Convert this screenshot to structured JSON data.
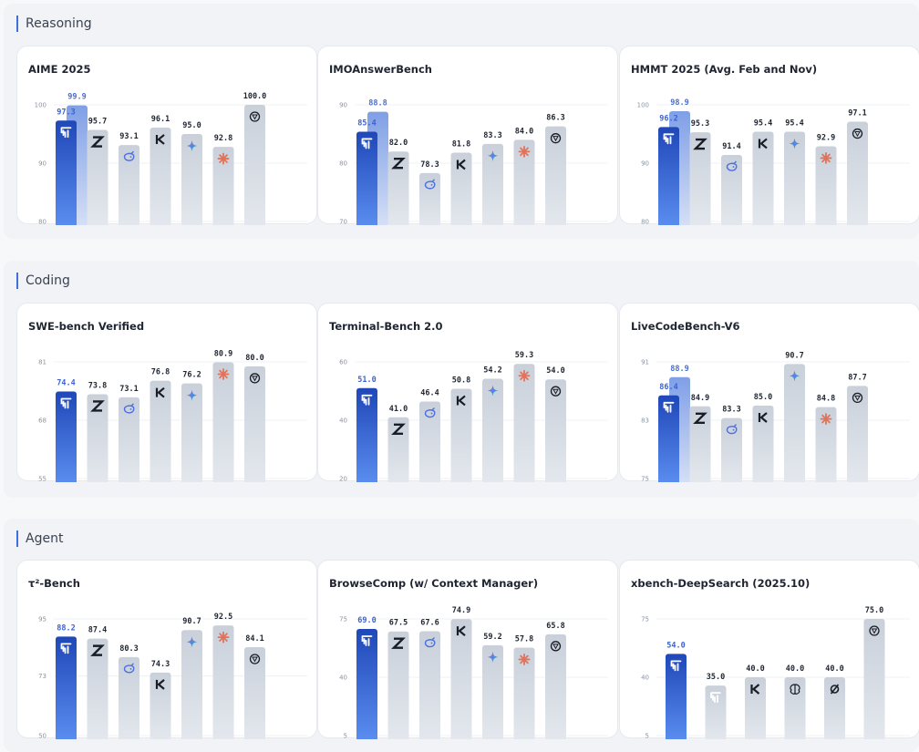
{
  "sections": [
    {
      "title": "Reasoning",
      "panel_ids": [
        0,
        1,
        2
      ]
    },
    {
      "title": "Coding",
      "panel_ids": [
        3,
        4,
        5
      ]
    },
    {
      "title": "Agent",
      "panel_ids": [
        6,
        7,
        8
      ]
    }
  ],
  "chart_data": [
    {
      "type": "bar",
      "title": "AIME 2025",
      "yticks": [
        100,
        90,
        80
      ],
      "ylim": [
        80,
        100
      ],
      "bars": [
        {
          "value": 97.3,
          "label": "97.3",
          "icon": "mimo-icon",
          "highlight": true,
          "secondary": {
            "value": 99.9,
            "label": "99.9"
          }
        },
        {
          "value": 95.7,
          "label": "95.7",
          "icon": "z-icon"
        },
        {
          "value": 93.1,
          "label": "93.1",
          "icon": "whale-icon"
        },
        {
          "value": 96.1,
          "label": "96.1",
          "icon": "k-icon"
        },
        {
          "value": 95.0,
          "label": "95.0",
          "icon": "gemini-icon"
        },
        {
          "value": 92.8,
          "label": "92.8",
          "icon": "claude-icon"
        },
        {
          "value": 100.0,
          "label": "100.0",
          "icon": "openai-icon"
        }
      ]
    },
    {
      "type": "bar",
      "title": "IMOAnswerBench",
      "yticks": [
        90,
        80,
        70
      ],
      "ylim": [
        70,
        90
      ],
      "bars": [
        {
          "value": 85.4,
          "label": "85.4",
          "icon": "mimo-icon",
          "highlight": true,
          "secondary": {
            "value": 88.8,
            "label": "88.8"
          }
        },
        {
          "value": 82.0,
          "label": "82.0",
          "icon": "z-icon"
        },
        {
          "value": 78.3,
          "label": "78.3",
          "icon": "whale-icon"
        },
        {
          "value": 81.8,
          "label": "81.8",
          "icon": "k-icon"
        },
        {
          "value": 83.3,
          "label": "83.3",
          "icon": "gemini-icon"
        },
        {
          "value": 84.0,
          "label": "84.0",
          "icon": "claude-icon"
        },
        {
          "value": 86.3,
          "label": "86.3",
          "icon": "openai-icon"
        }
      ]
    },
    {
      "type": "bar",
      "title": "HMMT 2025 (Avg. Feb and Nov)",
      "yticks": [
        100,
        90,
        80
      ],
      "ylim": [
        80,
        100
      ],
      "bars": [
        {
          "value": 96.2,
          "label": "96.2",
          "icon": "mimo-icon",
          "highlight": true,
          "secondary": {
            "value": 98.9,
            "label": "98.9"
          }
        },
        {
          "value": 95.3,
          "label": "95.3",
          "icon": "z-icon"
        },
        {
          "value": 91.4,
          "label": "91.4",
          "icon": "whale-icon"
        },
        {
          "value": 95.4,
          "label": "95.4",
          "icon": "k-icon"
        },
        {
          "value": 95.4,
          "label": "95.4",
          "icon": "gemini-icon"
        },
        {
          "value": 92.9,
          "label": "92.9",
          "icon": "claude-icon"
        },
        {
          "value": 97.1,
          "label": "97.1",
          "icon": "openai-icon"
        }
      ]
    },
    {
      "type": "bar",
      "title": "SWE-bench Verified",
      "yticks": [
        81,
        68,
        55
      ],
      "ylim": [
        55,
        81
      ],
      "bars": [
        {
          "value": 74.4,
          "label": "74.4",
          "icon": "mimo-icon",
          "highlight": true
        },
        {
          "value": 73.8,
          "label": "73.8",
          "icon": "z-icon"
        },
        {
          "value": 73.1,
          "label": "73.1",
          "icon": "whale-icon"
        },
        {
          "value": 76.8,
          "label": "76.8",
          "icon": "k-icon"
        },
        {
          "value": 76.2,
          "label": "76.2",
          "icon": "gemini-icon"
        },
        {
          "value": 80.9,
          "label": "80.9",
          "icon": "claude-icon"
        },
        {
          "value": 80.0,
          "label": "80.0",
          "icon": "openai-icon"
        }
      ]
    },
    {
      "type": "bar",
      "title": "Terminal-Bench 2.0",
      "yticks": [
        60,
        40,
        20
      ],
      "ylim": [
        20,
        60
      ],
      "bars": [
        {
          "value": 51.0,
          "label": "51.0",
          "icon": "mimo-icon",
          "highlight": true
        },
        {
          "value": 41.0,
          "label": "41.0",
          "icon": "z-icon"
        },
        {
          "value": 46.4,
          "label": "46.4",
          "icon": "whale-icon"
        },
        {
          "value": 50.8,
          "label": "50.8",
          "icon": "k-icon"
        },
        {
          "value": 54.2,
          "label": "54.2",
          "icon": "gemini-icon"
        },
        {
          "value": 59.3,
          "label": "59.3",
          "icon": "claude-icon"
        },
        {
          "value": 54.0,
          "label": "54.0",
          "icon": "openai-icon"
        }
      ]
    },
    {
      "type": "bar",
      "title": "LiveCodeBench-V6",
      "yticks": [
        91,
        83,
        75
      ],
      "ylim": [
        75,
        91
      ],
      "bars": [
        {
          "value": 86.4,
          "label": "86.4",
          "icon": "mimo-icon",
          "highlight": true,
          "secondary": {
            "value": 88.9,
            "label": "88.9"
          }
        },
        {
          "value": 84.9,
          "label": "84.9",
          "icon": "z-icon"
        },
        {
          "value": 83.3,
          "label": "83.3",
          "icon": "whale-icon"
        },
        {
          "value": 85.0,
          "label": "85.0",
          "icon": "k-icon"
        },
        {
          "value": 90.7,
          "label": "90.7",
          "icon": "gemini-icon"
        },
        {
          "value": 84.8,
          "label": "84.8",
          "icon": "claude-icon"
        },
        {
          "value": 87.7,
          "label": "87.7",
          "icon": "openai-icon"
        }
      ]
    },
    {
      "type": "bar",
      "title": "τ²-Bench",
      "yticks": [
        95,
        73,
        50
      ],
      "ylim": [
        50,
        95
      ],
      "bars": [
        {
          "value": 88.2,
          "label": "88.2",
          "icon": "mimo-icon",
          "highlight": true
        },
        {
          "value": 87.4,
          "label": "87.4",
          "icon": "z-icon"
        },
        {
          "value": 80.3,
          "label": "80.3",
          "icon": "whale-icon"
        },
        {
          "value": 74.3,
          "label": "74.3",
          "icon": "k-icon"
        },
        {
          "value": 90.7,
          "label": "90.7",
          "icon": "gemini-icon"
        },
        {
          "value": 92.5,
          "label": "92.5",
          "icon": "claude-icon"
        },
        {
          "value": 84.1,
          "label": "84.1",
          "icon": "openai-icon"
        }
      ]
    },
    {
      "type": "bar",
      "title": "BrowseComp (w/ Context Manager)",
      "yticks": [
        75,
        40,
        5
      ],
      "ylim": [
        5,
        75
      ],
      "bars": [
        {
          "value": 69.0,
          "label": "69.0",
          "icon": "mimo-icon",
          "highlight": true
        },
        {
          "value": 67.5,
          "label": "67.5",
          "icon": "z-icon"
        },
        {
          "value": 67.6,
          "label": "67.6",
          "icon": "whale-icon"
        },
        {
          "value": 74.9,
          "label": "74.9",
          "icon": "k-icon"
        },
        {
          "value": 59.2,
          "label": "59.2",
          "icon": "gemini-icon"
        },
        {
          "value": 57.8,
          "label": "57.8",
          "icon": "claude-icon"
        },
        {
          "value": 65.8,
          "label": "65.8",
          "icon": "openai-icon"
        }
      ]
    },
    {
      "type": "bar",
      "title": "xbench-DeepSearch (2025.10)",
      "yticks": [
        75,
        40,
        5
      ],
      "ylim": [
        5,
        75
      ],
      "bars": [
        {
          "value": 54.0,
          "label": "54.0",
          "icon": "mimo-icon",
          "highlight": true
        },
        {
          "value": 35.0,
          "label": "35.0",
          "icon": "mimo-icon"
        },
        {
          "value": 40.0,
          "label": "40.0",
          "icon": "k-icon"
        },
        {
          "value": 40.0,
          "label": "40.0",
          "icon": "brain-icon"
        },
        {
          "value": 40.0,
          "label": "40.0",
          "icon": "slash-circle-icon"
        },
        {
          "value": 75.0,
          "label": "75.0",
          "icon": "openai-icon"
        }
      ]
    }
  ]
}
